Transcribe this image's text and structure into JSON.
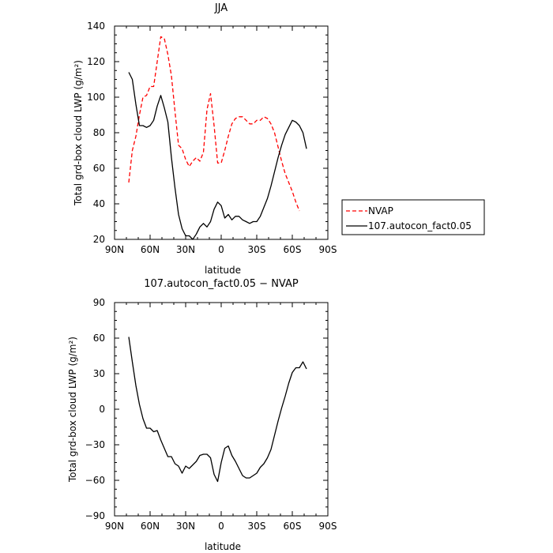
{
  "chart_data": [
    {
      "type": "line",
      "title": "JJA",
      "xlabel": "latitude",
      "ylabel": "Total grd-box cloud LWP (g/m²)",
      "xlim": [
        -90,
        90
      ],
      "ylim": [
        20,
        140
      ],
      "x_ticks": [
        -90,
        -60,
        -30,
        0,
        30,
        60,
        90
      ],
      "x_tick_labels": [
        "90N",
        "60N",
        "30N",
        "0",
        "30S",
        "60S",
        "90S"
      ],
      "y_ticks": [
        20,
        40,
        60,
        80,
        100,
        120,
        140
      ],
      "y_tick_labels": [
        "20",
        "40",
        "60",
        "80",
        "100",
        "120",
        "140"
      ],
      "legend_position": "right",
      "series": [
        {
          "name": "NVAP",
          "color": "#ff0000",
          "dash": "dashed",
          "points": [
            [
              -78,
              52
            ],
            [
              -75,
              70
            ],
            [
              -72,
              78
            ],
            [
              -69,
              90
            ],
            [
              -66,
              100
            ],
            [
              -63,
              101
            ],
            [
              -60,
              106
            ],
            [
              -57,
              106
            ],
            [
              -54,
              120
            ],
            [
              -51,
              134
            ],
            [
              -48,
              133
            ],
            [
              -45,
              124
            ],
            [
              -42,
              112
            ],
            [
              -39,
              92
            ],
            [
              -36,
              73
            ],
            [
              -33,
              71
            ],
            [
              -30,
              65
            ],
            [
              -27,
              61
            ],
            [
              -24,
              64
            ],
            [
              -21,
              66
            ],
            [
              -18,
              64
            ],
            [
              -15,
              69
            ],
            [
              -12,
              93
            ],
            [
              -9,
              102
            ],
            [
              -6,
              84
            ],
            [
              -3,
              63
            ],
            [
              0,
              63
            ],
            [
              3,
              70
            ],
            [
              6,
              78
            ],
            [
              9,
              85
            ],
            [
              12,
              88
            ],
            [
              15,
              89
            ],
            [
              18,
              89
            ],
            [
              21,
              87
            ],
            [
              24,
              85
            ],
            [
              27,
              85
            ],
            [
              30,
              87
            ],
            [
              33,
              87
            ],
            [
              36,
              89
            ],
            [
              39,
              88
            ],
            [
              42,
              85
            ],
            [
              45,
              80
            ],
            [
              48,
              72
            ],
            [
              51,
              64
            ],
            [
              54,
              57
            ],
            [
              57,
              52
            ],
            [
              60,
              47
            ],
            [
              63,
              41
            ],
            [
              66,
              36
            ]
          ]
        },
        {
          "name": "107.autocon_fact0.05",
          "color": "#000000",
          "dash": "solid",
          "points": [
            [
              -78,
              114
            ],
            [
              -75,
              110
            ],
            [
              -72,
              96
            ],
            [
              -69,
              84
            ],
            [
              -66,
              84
            ],
            [
              -63,
              83
            ],
            [
              -60,
              84
            ],
            [
              -57,
              87
            ],
            [
              -54,
              95
            ],
            [
              -51,
              101
            ],
            [
              -48,
              94
            ],
            [
              -45,
              86
            ],
            [
              -42,
              66
            ],
            [
              -39,
              49
            ],
            [
              -36,
              34
            ],
            [
              -33,
              26
            ],
            [
              -30,
              22
            ],
            [
              -27,
              22
            ],
            [
              -24,
              20
            ],
            [
              -21,
              23
            ],
            [
              -18,
              27
            ],
            [
              -15,
              29
            ],
            [
              -12,
              27
            ],
            [
              -9,
              30
            ],
            [
              -6,
              37
            ],
            [
              -3,
              41
            ],
            [
              0,
              39
            ],
            [
              3,
              32
            ],
            [
              6,
              34
            ],
            [
              9,
              31
            ],
            [
              12,
              33
            ],
            [
              15,
              33
            ],
            [
              18,
              31
            ],
            [
              21,
              30
            ],
            [
              24,
              29
            ],
            [
              27,
              30
            ],
            [
              30,
              30
            ],
            [
              33,
              33
            ],
            [
              36,
              38
            ],
            [
              39,
              43
            ],
            [
              42,
              50
            ],
            [
              45,
              58
            ],
            [
              48,
              66
            ],
            [
              51,
              73
            ],
            [
              54,
              79
            ],
            [
              57,
              83
            ],
            [
              60,
              87
            ],
            [
              63,
              86
            ],
            [
              66,
              84
            ],
            [
              69,
              80
            ],
            [
              72,
              71
            ]
          ]
        }
      ]
    },
    {
      "type": "line",
      "title": "107.autocon_fact0.05 − NVAP",
      "xlabel": "latitude",
      "ylabel": "Total grd-box cloud LWP (g/m²)",
      "xlim": [
        -90,
        90
      ],
      "ylim": [
        -90,
        90
      ],
      "x_ticks": [
        -90,
        -60,
        -30,
        0,
        30,
        60,
        90
      ],
      "x_tick_labels": [
        "90N",
        "60N",
        "30N",
        "0",
        "30S",
        "60S",
        "90S"
      ],
      "y_ticks": [
        -90,
        -60,
        -30,
        0,
        30,
        60,
        90
      ],
      "y_tick_labels": [
        "−90",
        "−60",
        "−30",
        "0",
        "30",
        "60",
        "90"
      ],
      "series": [
        {
          "color": "#000000",
          "dash": "solid",
          "points": [
            [
              -78,
              61
            ],
            [
              -75,
              40
            ],
            [
              -72,
              20
            ],
            [
              -69,
              4
            ],
            [
              -66,
              -8
            ],
            [
              -63,
              -16
            ],
            [
              -60,
              -16
            ],
            [
              -57,
              -19
            ],
            [
              -54,
              -18
            ],
            [
              -51,
              -26
            ],
            [
              -48,
              -33
            ],
            [
              -45,
              -40
            ],
            [
              -42,
              -40
            ],
            [
              -39,
              -46
            ],
            [
              -36,
              -48
            ],
            [
              -33,
              -54
            ],
            [
              -30,
              -48
            ],
            [
              -27,
              -50
            ],
            [
              -24,
              -47
            ],
            [
              -21,
              -44
            ],
            [
              -18,
              -39
            ],
            [
              -15,
              -38
            ],
            [
              -12,
              -38
            ],
            [
              -9,
              -41
            ],
            [
              -6,
              -55
            ],
            [
              -3,
              -61
            ],
            [
              0,
              -45
            ],
            [
              3,
              -33
            ],
            [
              6,
              -31
            ],
            [
              9,
              -39
            ],
            [
              12,
              -44
            ],
            [
              15,
              -50
            ],
            [
              18,
              -56
            ],
            [
              21,
              -58
            ],
            [
              24,
              -58
            ],
            [
              27,
              -56
            ],
            [
              30,
              -54
            ],
            [
              33,
              -49
            ],
            [
              36,
              -46
            ],
            [
              39,
              -41
            ],
            [
              42,
              -34
            ],
            [
              45,
              -22
            ],
            [
              48,
              -10
            ],
            [
              51,
              1
            ],
            [
              54,
              11
            ],
            [
              57,
              22
            ],
            [
              60,
              31
            ],
            [
              63,
              35
            ],
            [
              66,
              35
            ],
            [
              69,
              40
            ],
            [
              72,
              34
            ]
          ]
        }
      ]
    }
  ]
}
